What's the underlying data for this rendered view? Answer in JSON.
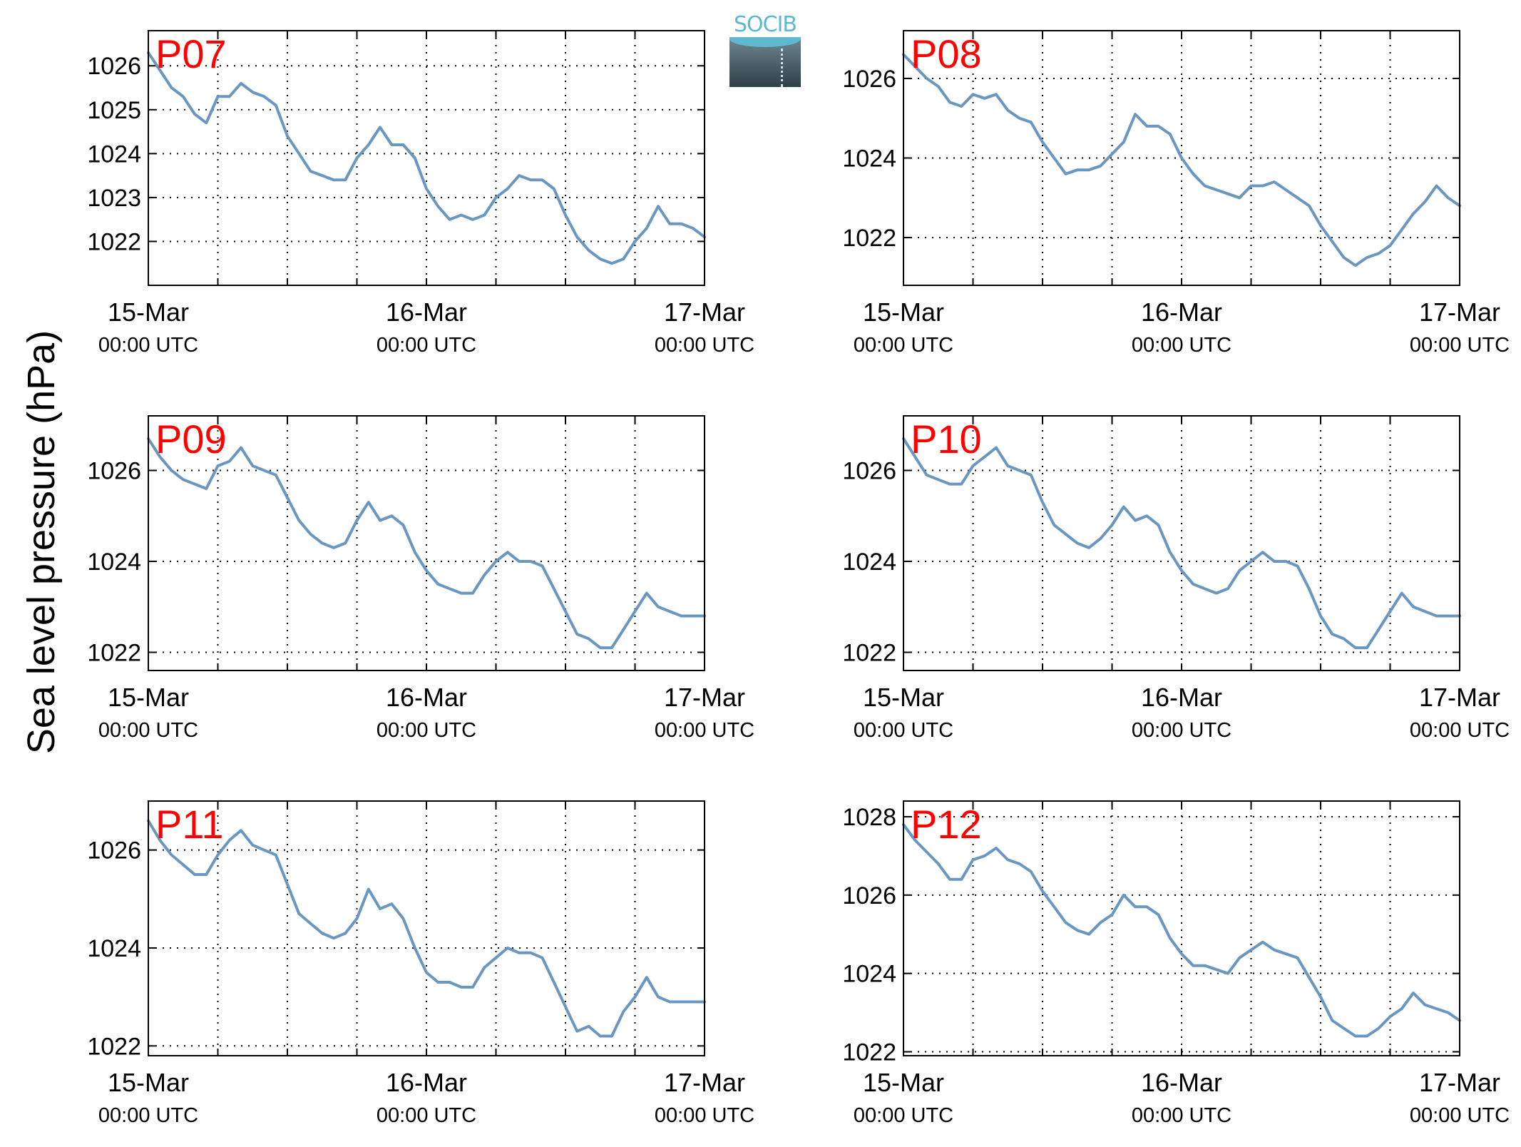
{
  "figure": {
    "ylabel": "Sea level pressure (hPa)",
    "logo_text": "SOCIB",
    "colors": {
      "line": "#6a97bf",
      "panel_label": "#ff0000",
      "axes": "#000000",
      "grid": "#000000"
    }
  },
  "chart_data": [
    {
      "type": "line",
      "title": "P07",
      "x_ticks": [
        {
          "date": "15-Mar",
          "time": "00:00 UTC"
        },
        {
          "date": "16-Mar",
          "time": "00:00 UTC"
        },
        {
          "date": "17-Mar",
          "time": "00:00 UTC"
        }
      ],
      "xlim": [
        "15-Mar 00:00",
        "17-Mar 00:00"
      ],
      "ylim": [
        1021.0,
        1026.8
      ],
      "yticks": [
        1022,
        1023,
        1024,
        1025,
        1026
      ],
      "grid": true,
      "series": [
        {
          "x_hours": [
            0,
            1,
            2,
            3,
            4,
            5,
            6,
            7,
            8,
            9,
            10,
            11,
            12,
            13,
            14,
            15,
            16,
            17,
            18,
            19,
            20,
            21,
            22,
            23,
            24,
            25,
            26,
            27,
            28,
            29,
            30,
            31,
            32,
            33,
            34,
            35,
            36,
            37,
            38,
            39,
            40,
            41,
            42,
            43,
            44,
            45,
            46,
            47,
            48
          ],
          "values": [
            1026.3,
            1025.9,
            1025.5,
            1025.3,
            1024.9,
            1024.7,
            1025.3,
            1025.3,
            1025.6,
            1025.4,
            1025.3,
            1025.1,
            1024.4,
            1024.0,
            1023.6,
            1023.5,
            1023.4,
            1023.4,
            1023.9,
            1024.2,
            1024.6,
            1024.2,
            1024.2,
            1023.9,
            1023.2,
            1022.8,
            1022.5,
            1022.6,
            1022.5,
            1022.6,
            1023.0,
            1023.2,
            1023.5,
            1023.4,
            1023.4,
            1023.2,
            1022.6,
            1022.1,
            1021.8,
            1021.6,
            1021.5,
            1021.6,
            1022.0,
            1022.3,
            1022.8,
            1022.4,
            1022.4,
            1022.3,
            1022.1
          ]
        }
      ]
    },
    {
      "type": "line",
      "title": "P08",
      "x_ticks": [
        {
          "date": "15-Mar",
          "time": "00:00 UTC"
        },
        {
          "date": "16-Mar",
          "time": "00:00 UTC"
        },
        {
          "date": "17-Mar",
          "time": "00:00 UTC"
        }
      ],
      "xlim": [
        "15-Mar 00:00",
        "17-Mar 00:00"
      ],
      "ylim": [
        1020.8,
        1027.2
      ],
      "yticks": [
        1022,
        1024,
        1026
      ],
      "grid": true,
      "series": [
        {
          "x_hours": [
            0,
            1,
            2,
            3,
            4,
            5,
            6,
            7,
            8,
            9,
            10,
            11,
            12,
            13,
            14,
            15,
            16,
            17,
            18,
            19,
            20,
            21,
            22,
            23,
            24,
            25,
            26,
            27,
            28,
            29,
            30,
            31,
            32,
            33,
            34,
            35,
            36,
            37,
            38,
            39,
            40,
            41,
            42,
            43,
            44,
            45,
            46,
            47,
            48
          ],
          "values": [
            1026.6,
            1026.3,
            1026.0,
            1025.8,
            1025.4,
            1025.3,
            1025.6,
            1025.5,
            1025.6,
            1025.2,
            1025.0,
            1024.9,
            1024.4,
            1024.0,
            1023.6,
            1023.7,
            1023.7,
            1023.8,
            1024.1,
            1024.4,
            1025.1,
            1024.8,
            1024.8,
            1024.6,
            1024.0,
            1023.6,
            1023.3,
            1023.2,
            1023.1,
            1023.0,
            1023.3,
            1023.3,
            1023.4,
            1023.2,
            1023.0,
            1022.8,
            1022.3,
            1021.9,
            1021.5,
            1021.3,
            1021.5,
            1021.6,
            1021.8,
            1022.2,
            1022.6,
            1022.9,
            1023.3,
            1023.0,
            1022.8
          ]
        }
      ]
    },
    {
      "type": "line",
      "title": "P09",
      "x_ticks": [
        {
          "date": "15-Mar",
          "time": "00:00 UTC"
        },
        {
          "date": "16-Mar",
          "time": "00:00 UTC"
        },
        {
          "date": "17-Mar",
          "time": "00:00 UTC"
        }
      ],
      "xlim": [
        "15-Mar 00:00",
        "17-Mar 00:00"
      ],
      "ylim": [
        1021.6,
        1027.2
      ],
      "yticks": [
        1022,
        1024,
        1026
      ],
      "grid": true,
      "series": [
        {
          "x_hours": [
            0,
            1,
            2,
            3,
            4,
            5,
            6,
            7,
            8,
            9,
            10,
            11,
            12,
            13,
            14,
            15,
            16,
            17,
            18,
            19,
            20,
            21,
            22,
            23,
            24,
            25,
            26,
            27,
            28,
            29,
            30,
            31,
            32,
            33,
            34,
            35,
            36,
            37,
            38,
            39,
            40,
            41,
            42,
            43,
            44,
            45,
            46,
            47,
            48
          ],
          "values": [
            1026.7,
            1026.3,
            1026.0,
            1025.8,
            1025.7,
            1025.6,
            1026.1,
            1026.2,
            1026.5,
            1026.1,
            1026.0,
            1025.9,
            1025.4,
            1024.9,
            1024.6,
            1024.4,
            1024.3,
            1024.4,
            1024.9,
            1025.3,
            1024.9,
            1025.0,
            1024.8,
            1024.2,
            1023.8,
            1023.5,
            1023.4,
            1023.3,
            1023.3,
            1023.7,
            1024.0,
            1024.2,
            1024.0,
            1024.0,
            1023.9,
            1023.4,
            1022.9,
            1022.4,
            1022.3,
            1022.1,
            1022.1,
            1022.5,
            1022.9,
            1023.3,
            1023.0,
            1022.9,
            1022.8,
            1022.8,
            1022.8
          ]
        }
      ]
    },
    {
      "type": "line",
      "title": "P10",
      "x_ticks": [
        {
          "date": "15-Mar",
          "time": "00:00 UTC"
        },
        {
          "date": "16-Mar",
          "time": "00:00 UTC"
        },
        {
          "date": "17-Mar",
          "time": "00:00 UTC"
        }
      ],
      "xlim": [
        "15-Mar 00:00",
        "17-Mar 00:00"
      ],
      "ylim": [
        1021.6,
        1027.2
      ],
      "yticks": [
        1022,
        1024,
        1026
      ],
      "grid": true,
      "series": [
        {
          "x_hours": [
            0,
            1,
            2,
            3,
            4,
            5,
            6,
            7,
            8,
            9,
            10,
            11,
            12,
            13,
            14,
            15,
            16,
            17,
            18,
            19,
            20,
            21,
            22,
            23,
            24,
            25,
            26,
            27,
            28,
            29,
            30,
            31,
            32,
            33,
            34,
            35,
            36,
            37,
            38,
            39,
            40,
            41,
            42,
            43,
            44,
            45,
            46,
            47,
            48
          ],
          "values": [
            1026.7,
            1026.3,
            1025.9,
            1025.8,
            1025.7,
            1025.7,
            1026.1,
            1026.3,
            1026.5,
            1026.1,
            1026.0,
            1025.9,
            1025.3,
            1024.8,
            1024.6,
            1024.4,
            1024.3,
            1024.5,
            1024.8,
            1025.2,
            1024.9,
            1025.0,
            1024.8,
            1024.2,
            1023.8,
            1023.5,
            1023.4,
            1023.3,
            1023.4,
            1023.8,
            1024.0,
            1024.2,
            1024.0,
            1024.0,
            1023.9,
            1023.4,
            1022.8,
            1022.4,
            1022.3,
            1022.1,
            1022.1,
            1022.5,
            1022.9,
            1023.3,
            1023.0,
            1022.9,
            1022.8,
            1022.8,
            1022.8
          ]
        }
      ]
    },
    {
      "type": "line",
      "title": "P11",
      "x_ticks": [
        {
          "date": "15-Mar",
          "time": "00:00 UTC"
        },
        {
          "date": "16-Mar",
          "time": "00:00 UTC"
        },
        {
          "date": "17-Mar",
          "time": "00:00 UTC"
        }
      ],
      "xlim": [
        "15-Mar 00:00",
        "17-Mar 00:00"
      ],
      "ylim": [
        1021.8,
        1027.0
      ],
      "yticks": [
        1022,
        1024,
        1026
      ],
      "grid": true,
      "series": [
        {
          "x_hours": [
            0,
            1,
            2,
            3,
            4,
            5,
            6,
            7,
            8,
            9,
            10,
            11,
            12,
            13,
            14,
            15,
            16,
            17,
            18,
            19,
            20,
            21,
            22,
            23,
            24,
            25,
            26,
            27,
            28,
            29,
            30,
            31,
            32,
            33,
            34,
            35,
            36,
            37,
            38,
            39,
            40,
            41,
            42,
            43,
            44,
            45,
            46,
            47,
            48
          ],
          "values": [
            1026.6,
            1026.2,
            1025.9,
            1025.7,
            1025.5,
            1025.5,
            1025.9,
            1026.2,
            1026.4,
            1026.1,
            1026.0,
            1025.9,
            1025.3,
            1024.7,
            1024.5,
            1024.3,
            1024.2,
            1024.3,
            1024.6,
            1025.2,
            1024.8,
            1024.9,
            1024.6,
            1024.0,
            1023.5,
            1023.3,
            1023.3,
            1023.2,
            1023.2,
            1023.6,
            1023.8,
            1024.0,
            1023.9,
            1023.9,
            1023.8,
            1023.3,
            1022.8,
            1022.3,
            1022.4,
            1022.2,
            1022.2,
            1022.7,
            1023.0,
            1023.4,
            1023.0,
            1022.9,
            1022.9,
            1022.9,
            1022.9
          ]
        }
      ]
    },
    {
      "type": "line",
      "title": "P12",
      "x_ticks": [
        {
          "date": "15-Mar",
          "time": "00:00 UTC"
        },
        {
          "date": "16-Mar",
          "time": "00:00 UTC"
        },
        {
          "date": "17-Mar",
          "time": "00:00 UTC"
        }
      ],
      "xlim": [
        "15-Mar 00:00",
        "17-Mar 00:00"
      ],
      "ylim": [
        1021.9,
        1028.4
      ],
      "yticks": [
        1022,
        1024,
        1026,
        1028
      ],
      "grid": true,
      "series": [
        {
          "x_hours": [
            0,
            1,
            2,
            3,
            4,
            5,
            6,
            7,
            8,
            9,
            10,
            11,
            12,
            13,
            14,
            15,
            16,
            17,
            18,
            19,
            20,
            21,
            22,
            23,
            24,
            25,
            26,
            27,
            28,
            29,
            30,
            31,
            32,
            33,
            34,
            35,
            36,
            37,
            38,
            39,
            40,
            41,
            42,
            43,
            44,
            45,
            46,
            47,
            48
          ],
          "values": [
            1027.8,
            1027.4,
            1027.1,
            1026.8,
            1026.4,
            1026.4,
            1026.9,
            1027.0,
            1027.2,
            1026.9,
            1026.8,
            1026.6,
            1026.1,
            1025.7,
            1025.3,
            1025.1,
            1025.0,
            1025.3,
            1025.5,
            1026.0,
            1025.7,
            1025.7,
            1025.5,
            1024.9,
            1024.5,
            1024.2,
            1024.2,
            1024.1,
            1024.0,
            1024.4,
            1024.6,
            1024.8,
            1024.6,
            1024.5,
            1024.4,
            1023.9,
            1023.4,
            1022.8,
            1022.6,
            1022.4,
            1022.4,
            1022.6,
            1022.9,
            1023.1,
            1023.5,
            1023.2,
            1023.1,
            1023.0,
            1022.8
          ]
        }
      ]
    }
  ]
}
